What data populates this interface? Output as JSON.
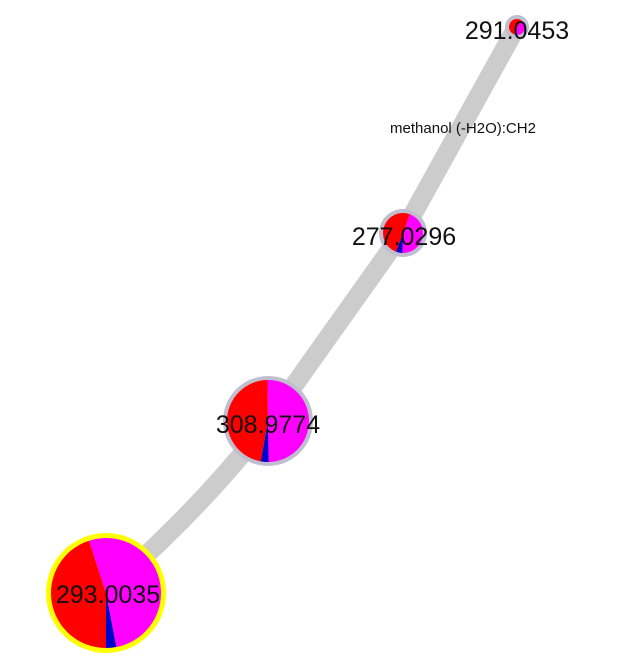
{
  "network": {
    "edge_label": "methanol (-H2O):CH2",
    "nodes": [
      {
        "id": "n291",
        "label": "291.0453",
        "pie": [
          0.55,
          0.45
        ],
        "selected": false
      },
      {
        "id": "n277",
        "label": "277.0296",
        "pie": [
          0.5,
          0.45,
          0.05
        ],
        "selected": false
      },
      {
        "id": "n308",
        "label": "308.9774",
        "pie": [
          0.47,
          0.5,
          0.03
        ],
        "selected": false
      },
      {
        "id": "n293",
        "label": "293.0035",
        "pie": [
          0.45,
          0.52,
          0.03
        ],
        "selected": true
      }
    ],
    "pie_colors": [
      "#ff0000",
      "#ff00ff",
      "#0000cc"
    ],
    "edge_color": "#cccccc",
    "node_border_color": "#c0bfcf",
    "selected_border_color": "#ffff00"
  }
}
